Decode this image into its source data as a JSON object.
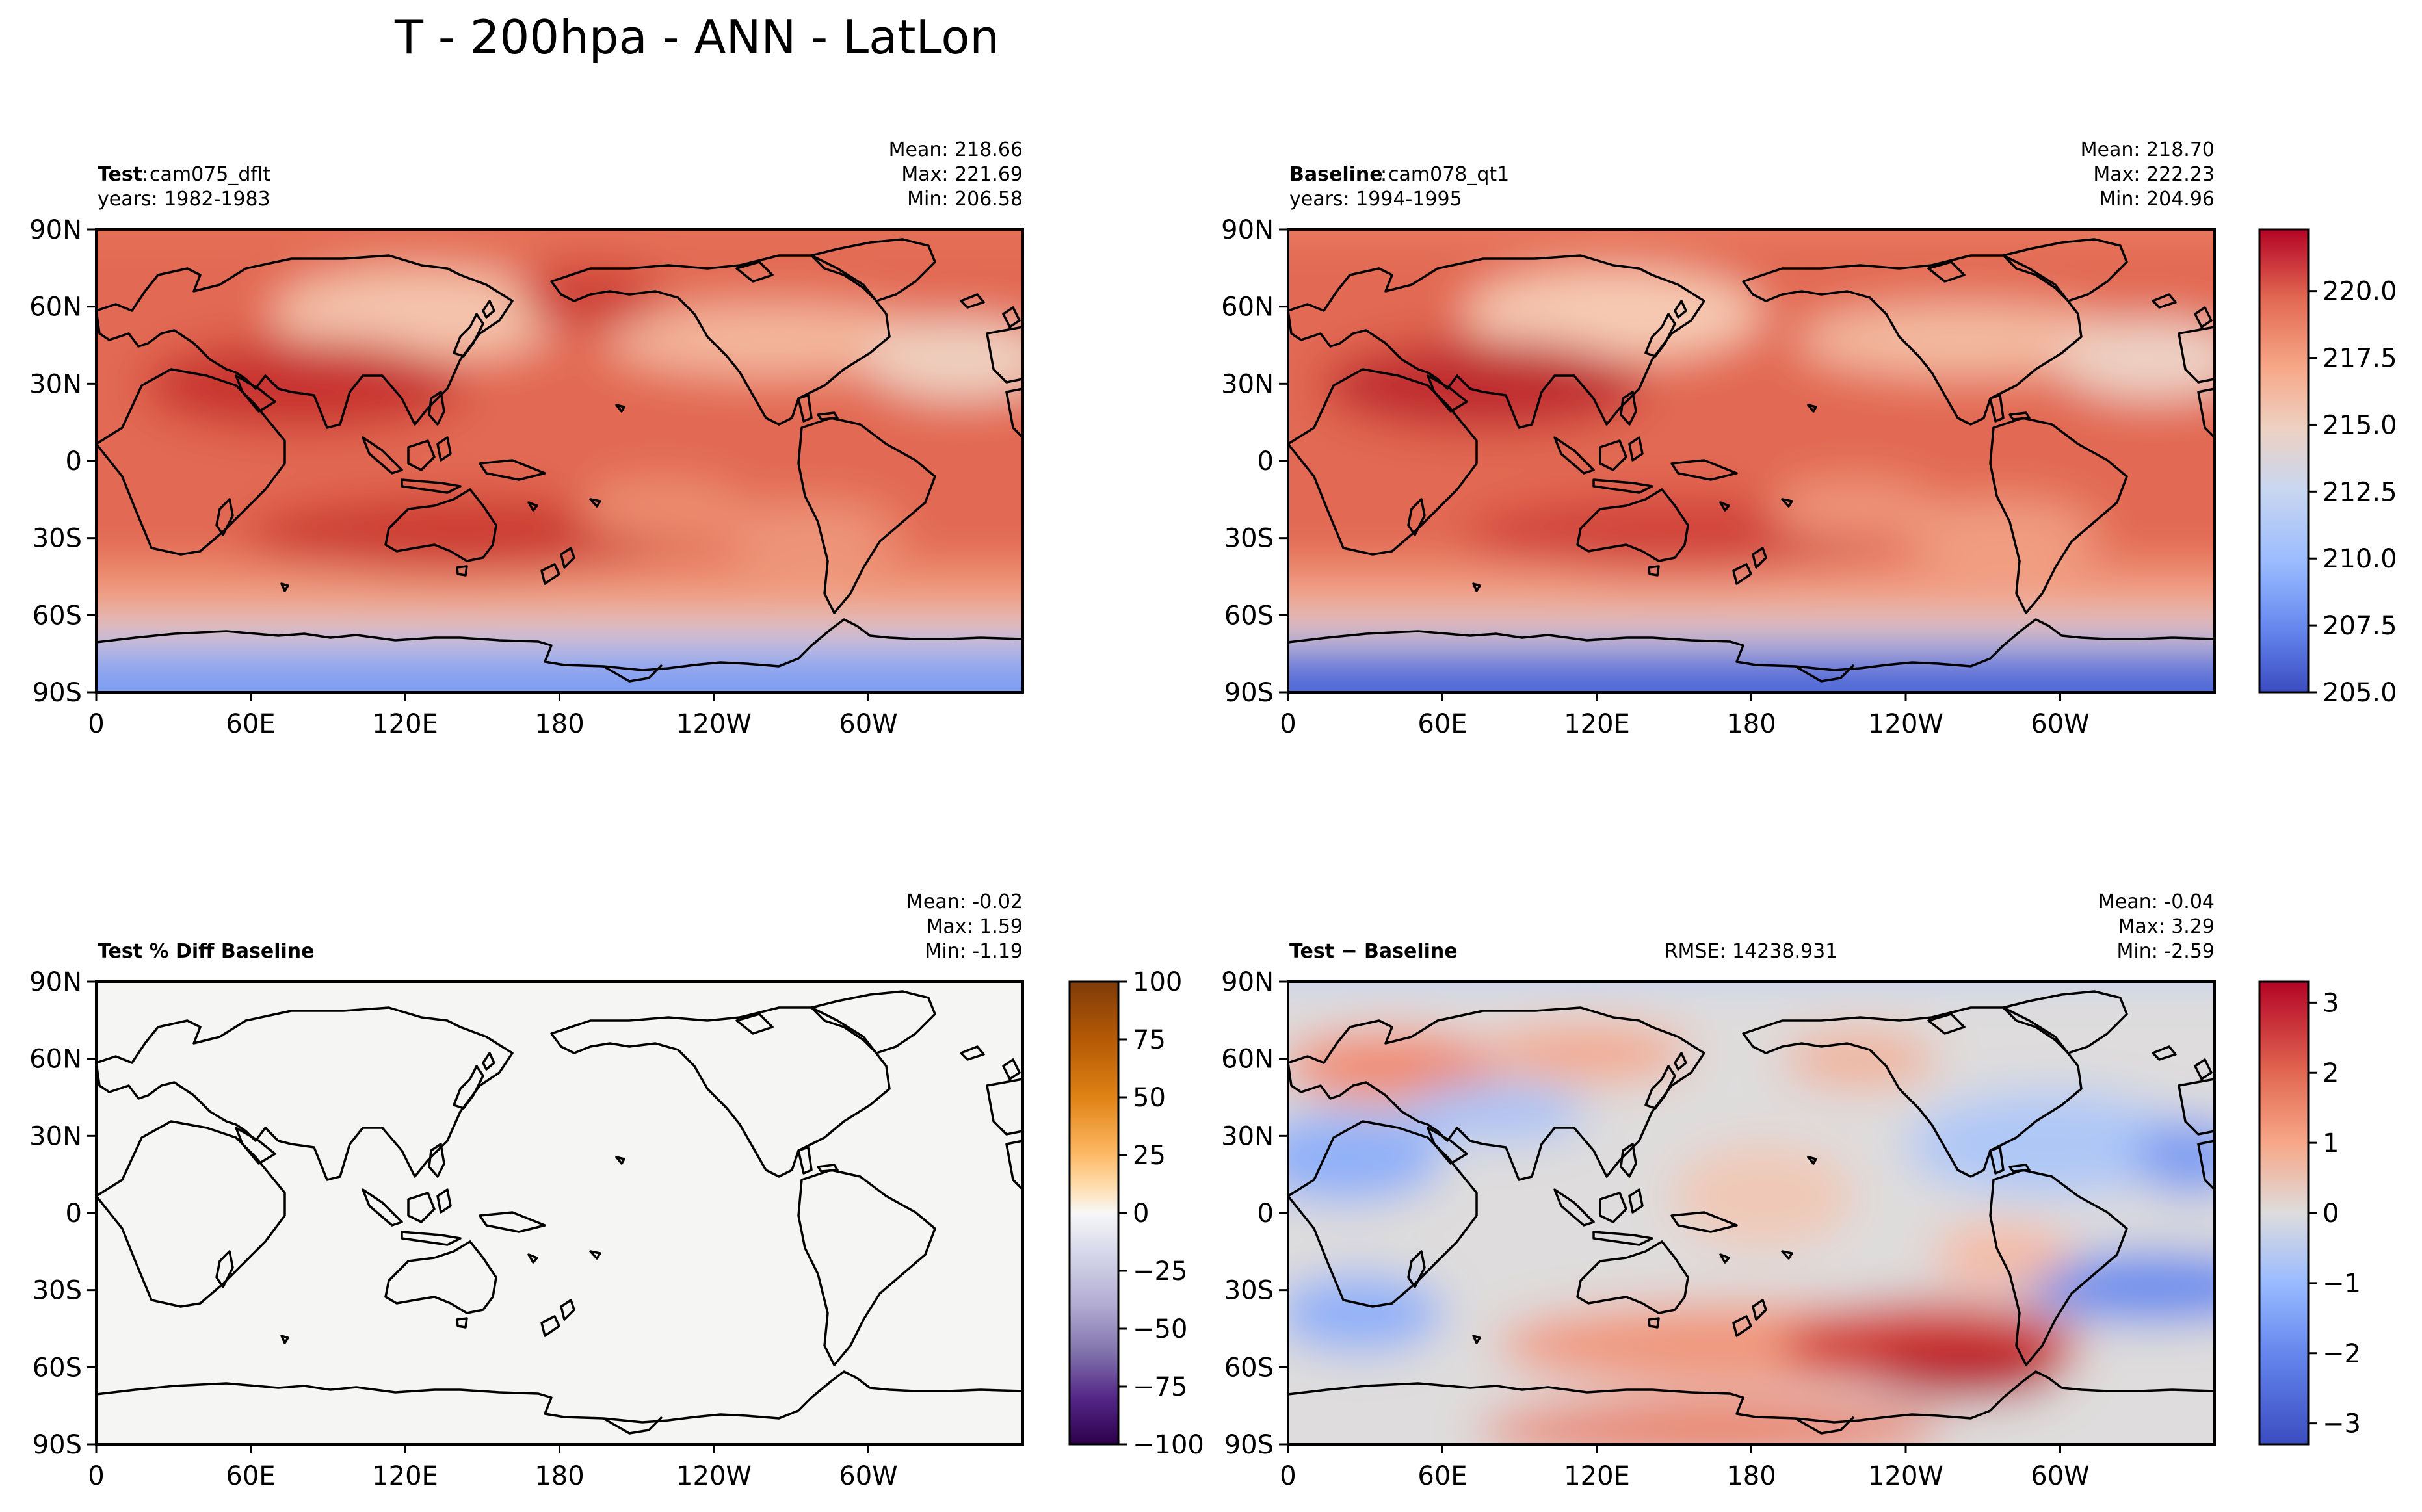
{
  "suptitle": "T - 200hpa - ANN - LatLon",
  "colors": {
    "coolwarm": [
      "#3b4cc0",
      "#6688ee",
      "#9abbff",
      "#c9d7f0",
      "#edd1c2",
      "#f7a889",
      "#e26952",
      "#b40426"
    ],
    "puor": [
      "#2d004b",
      "#542788",
      "#8073ac",
      "#b2abd2",
      "#d8daeb",
      "#f7f7f7",
      "#fee0b6",
      "#fdb863",
      "#e08214",
      "#b35806",
      "#7f3b08"
    ],
    "coast": "#000000",
    "frame": "#000000"
  },
  "lon_ticks": [
    "0",
    "60E",
    "120E",
    "180",
    "120W",
    "60W"
  ],
  "lat_ticks": [
    "90N",
    "60N",
    "30N",
    "0",
    "30S",
    "60S",
    "90S"
  ],
  "panels": {
    "test": {
      "bold": "Test",
      "sep": ":",
      "name": "cam075_dflt",
      "years": "years: 1982-1983",
      "stats": [
        "Mean: 218.66",
        "Max: 221.69",
        "Min: 206.58"
      ]
    },
    "baseline": {
      "bold": "Baseline",
      "sep": ":",
      "name": "cam078_qt1",
      "years": "years: 1994-1995",
      "stats": [
        "Mean: 218.70",
        "Max: 222.23",
        "Min: 204.96"
      ]
    },
    "pctdiff": {
      "bold": "Test % Diff Baseline",
      "stats": [
        "Mean: -0.02",
        "Max:  1.59",
        "Min: -1.19"
      ]
    },
    "diff": {
      "bold": "Test − Baseline",
      "rmse": "RMSE: 14238.931",
      "stats": [
        "Mean: -0.04",
        "Max:  3.29",
        "Min: -2.59"
      ]
    }
  },
  "colorbars": {
    "top": [
      "220.0",
      "217.5",
      "215.0",
      "212.5",
      "210.0",
      "207.5",
      "205.0"
    ],
    "pct": [
      "100",
      "75",
      "50",
      "25",
      "0",
      "−25",
      "−50",
      "−75",
      "−100"
    ],
    "diff": [
      "3",
      "2",
      "1",
      "0",
      "−1",
      "−2",
      "−3"
    ]
  },
  "chart_data": [
    {
      "type": "heatmap",
      "title": "Test : cam075_dflt",
      "subtitle": "years: 1982-1983",
      "xlabel": "",
      "ylabel": "",
      "x_range": [
        0,
        360
      ],
      "y_range": [
        -90,
        90
      ],
      "x_ticks": [
        "0",
        "60E",
        "120E",
        "180",
        "120W",
        "60W"
      ],
      "y_ticks": [
        "90N",
        "60N",
        "30N",
        "0",
        "30S",
        "60S",
        "90S"
      ],
      "stats": {
        "mean": 218.66,
        "max": 221.69,
        "min": 206.58
      },
      "colorbar": {
        "cmap": "coolwarm",
        "range": [
          205.0,
          222.3
        ]
      },
      "grid": false
    },
    {
      "type": "heatmap",
      "title": "Baseline : cam078_qt1",
      "subtitle": "years: 1994-1995",
      "xlabel": "",
      "ylabel": "",
      "x_range": [
        0,
        360
      ],
      "y_range": [
        -90,
        90
      ],
      "x_ticks": [
        "0",
        "60E",
        "120E",
        "180",
        "120W",
        "60W"
      ],
      "y_ticks": [
        "90N",
        "60N",
        "30N",
        "0",
        "30S",
        "60S",
        "90S"
      ],
      "stats": {
        "mean": 218.7,
        "max": 222.23,
        "min": 204.96
      },
      "colorbar": {
        "cmap": "coolwarm",
        "range": [
          205.0,
          222.3
        ],
        "ticks": [
          220.0,
          217.5,
          215.0,
          212.5,
          210.0,
          207.5,
          205.0
        ]
      },
      "grid": false
    },
    {
      "type": "heatmap",
      "title": "Test % Diff Baseline",
      "xlabel": "",
      "ylabel": "",
      "x_range": [
        0,
        360
      ],
      "y_range": [
        -90,
        90
      ],
      "stats": {
        "mean": -0.02,
        "max": 1.59,
        "min": -1.19
      },
      "colorbar": {
        "cmap": "PuOr",
        "range": [
          -100,
          100
        ],
        "ticks": [
          100,
          75,
          50,
          25,
          0,
          -25,
          -50,
          -75,
          -100
        ]
      },
      "grid": false
    },
    {
      "type": "heatmap",
      "title": "Test − Baseline",
      "annotation": "RMSE: 14238.931",
      "xlabel": "",
      "ylabel": "",
      "x_range": [
        0,
        360
      ],
      "y_range": [
        -90,
        90
      ],
      "stats": {
        "mean": -0.04,
        "max": 3.29,
        "min": -2.59
      },
      "colorbar": {
        "cmap": "coolwarm",
        "range": [
          -3.3,
          3.3
        ],
        "ticks": [
          3,
          2,
          1,
          0,
          -1,
          -2,
          -3
        ]
      },
      "grid": false
    }
  ]
}
